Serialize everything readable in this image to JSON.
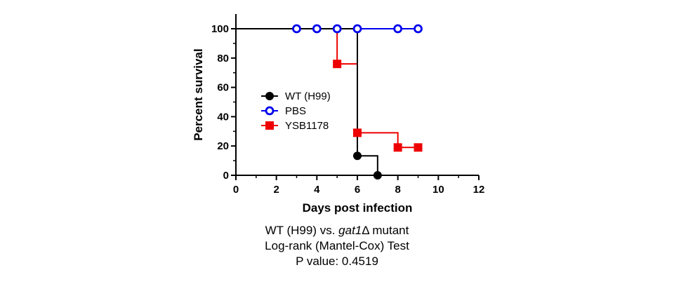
{
  "chart_data": {
    "type": "line",
    "step": true,
    "xlabel": "Days post infection",
    "ylabel": "Percent survival",
    "xlim": [
      0,
      12
    ],
    "ylim": [
      0,
      100
    ],
    "xticks": [
      0,
      2,
      4,
      6,
      8,
      10,
      12
    ],
    "yticks": [
      0,
      20,
      40,
      60,
      80,
      100
    ],
    "grid": false,
    "legend": "center-left",
    "series": [
      {
        "name": "WT (H99)",
        "color": "#000000",
        "marker": "filled-circle",
        "line": [
          [
            0,
            100
          ],
          [
            6,
            100
          ],
          [
            6,
            13.3
          ],
          [
            7,
            13.3
          ],
          [
            7,
            0
          ]
        ],
        "points": [
          [
            6,
            13.3
          ],
          [
            7,
            0
          ]
        ]
      },
      {
        "name": "PBS",
        "color": "#0000ee",
        "marker": "open-circle",
        "line": [
          [
            0,
            100
          ],
          [
            9,
            100
          ]
        ],
        "points": [
          [
            3,
            100
          ],
          [
            4,
            100
          ],
          [
            5,
            100
          ],
          [
            6,
            100
          ],
          [
            8,
            100
          ],
          [
            9,
            100
          ]
        ]
      },
      {
        "name": "YSB1178",
        "color": "#ee0000",
        "marker": "filled-square",
        "line": [
          [
            0,
            100
          ],
          [
            5,
            100
          ],
          [
            5,
            76
          ],
          [
            6,
            76
          ],
          [
            6,
            29
          ],
          [
            8,
            29
          ],
          [
            8,
            19
          ],
          [
            9,
            19
          ]
        ],
        "points": [
          [
            5,
            76
          ],
          [
            6,
            29
          ],
          [
            8,
            19
          ],
          [
            9,
            19
          ]
        ]
      }
    ]
  },
  "caption": {
    "line1_prefix": "WT (H99) vs. ",
    "line1_gene": "gat1",
    "line1_suffix": "Δ mutant",
    "line2": "Log-rank (Mantel-Cox) Test",
    "line3": "P value: 0.4519"
  }
}
